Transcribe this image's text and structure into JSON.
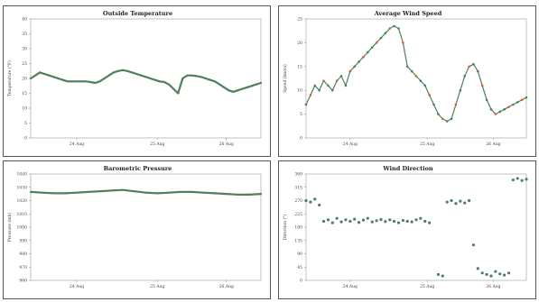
{
  "colors": {
    "series": "#4f7f5f",
    "accent": "#d9602f",
    "frame": "#555555"
  },
  "chart_data": [
    {
      "type": "line",
      "title": "Outside Temperature",
      "xlabel": "",
      "ylabel": "Temperature (°F)",
      "ylim": [
        0,
        40
      ],
      "yticks": [
        "40",
        "35",
        "30",
        "25",
        "20",
        "15",
        "10",
        "5",
        "0"
      ],
      "xticks": [
        "24 Aug",
        "25 Aug",
        "26 Aug"
      ],
      "x": [
        0,
        0.02,
        0.04,
        0.06,
        0.08,
        0.1,
        0.12,
        0.14,
        0.16,
        0.18,
        0.2,
        0.22,
        0.24,
        0.26,
        0.28,
        0.3,
        0.32,
        0.34,
        0.36,
        0.38,
        0.4,
        0.42,
        0.44,
        0.46,
        0.48,
        0.5,
        0.52,
        0.54,
        0.56,
        0.58,
        0.6,
        0.62,
        0.64,
        0.66,
        0.68,
        0.7,
        0.72,
        0.74,
        0.76,
        0.78,
        0.8,
        0.82,
        0.84,
        0.86,
        0.88,
        0.9,
        0.92,
        0.94,
        0.96,
        0.98,
        1.0
      ],
      "series": [
        {
          "values": [
            20,
            21,
            22,
            21.5,
            21,
            20.5,
            20,
            19.5,
            19,
            19,
            19,
            19,
            19,
            18.8,
            18.5,
            19,
            20,
            21,
            22,
            22.5,
            22.8,
            22.5,
            22,
            21.5,
            21,
            20.5,
            20,
            19.5,
            19,
            18.8,
            18,
            16.5,
            15,
            20,
            21,
            21,
            20.8,
            20.5,
            20,
            19.5,
            19,
            18,
            17,
            16,
            15.5,
            16,
            16.5,
            17,
            17.5,
            18,
            18.5
          ]
        }
      ]
    },
    {
      "type": "line",
      "title": "Average Wind Speed",
      "xlabel": "",
      "ylabel": "Speed (knots)",
      "ylim": [
        0,
        25
      ],
      "yticks": [
        "25",
        "20",
        "15",
        "10",
        "5",
        "0"
      ],
      "xticks": [
        "24 Aug",
        "25 Aug",
        "26 Aug"
      ],
      "x": [
        0,
        0.02,
        0.04,
        0.06,
        0.08,
        0.1,
        0.12,
        0.14,
        0.16,
        0.18,
        0.2,
        0.22,
        0.24,
        0.26,
        0.28,
        0.3,
        0.32,
        0.34,
        0.36,
        0.38,
        0.4,
        0.42,
        0.44,
        0.46,
        0.48,
        0.5,
        0.52,
        0.54,
        0.56,
        0.58,
        0.6,
        0.62,
        0.64,
        0.66,
        0.68,
        0.7,
        0.72,
        0.74,
        0.76,
        0.78,
        0.8,
        0.82,
        0.84,
        0.86,
        0.88,
        0.9,
        0.92,
        0.94,
        0.96,
        0.98,
        1.0
      ],
      "series": [
        {
          "values": [
            7,
            9,
            11,
            10,
            12,
            11,
            10,
            12,
            13,
            11,
            14,
            15,
            16,
            17,
            18,
            19,
            20,
            21,
            22,
            23,
            23.5,
            23,
            20,
            15,
            14,
            13,
            12,
            11,
            9,
            7,
            5,
            4,
            3.5,
            4,
            7,
            10,
            13,
            15,
            15.5,
            14,
            11,
            8,
            6,
            5,
            5.5,
            6,
            6.5,
            7,
            7.5,
            8,
            8.5
          ]
        }
      ]
    },
    {
      "type": "line",
      "title": "Barometric Pressure",
      "xlabel": "",
      "ylabel": "Pressure (mb)",
      "ylim": [
        960,
        1040
      ],
      "yticks": [
        "1040",
        "1030",
        "1020",
        "1010",
        "1000",
        "990",
        "980",
        "970",
        "960"
      ],
      "xticks": [
        "24 Aug",
        "25 Aug",
        "26 Aug"
      ],
      "x": [
        0,
        0.05,
        0.1,
        0.15,
        0.2,
        0.25,
        0.3,
        0.35,
        0.4,
        0.45,
        0.5,
        0.55,
        0.6,
        0.65,
        0.7,
        0.75,
        0.8,
        0.85,
        0.9,
        0.95,
        1.0
      ],
      "series": [
        {
          "values": [
            1026.5,
            1026,
            1025.5,
            1025.5,
            1026,
            1026.5,
            1027,
            1027.5,
            1028,
            1027,
            1026,
            1025.5,
            1026,
            1026.5,
            1026.5,
            1026,
            1025.5,
            1025,
            1024.5,
            1024.5,
            1025
          ]
        }
      ]
    },
    {
      "type": "scatter",
      "title": "Wind Direction",
      "xlabel": "",
      "ylabel": "Direction (°)",
      "ylim": [
        0,
        360
      ],
      "yticks": [
        "360",
        "315",
        "270",
        "225",
        "180",
        "135",
        "90",
        "45",
        "0"
      ],
      "xticks": [
        "24 Aug",
        "25 Aug",
        "26 Aug"
      ],
      "x": [
        0.0,
        0.02,
        0.04,
        0.06,
        0.08,
        0.1,
        0.12,
        0.14,
        0.16,
        0.18,
        0.2,
        0.22,
        0.24,
        0.26,
        0.28,
        0.3,
        0.32,
        0.34,
        0.36,
        0.38,
        0.4,
        0.42,
        0.44,
        0.46,
        0.48,
        0.5,
        0.52,
        0.54,
        0.56,
        0.6,
        0.62,
        0.64,
        0.66,
        0.68,
        0.7,
        0.72,
        0.74,
        0.76,
        0.78,
        0.8,
        0.82,
        0.84,
        0.86,
        0.88,
        0.9,
        0.92,
        0.94,
        0.96,
        0.98,
        1.0
      ],
      "series": [
        {
          "values": [
            270,
            265,
            275,
            255,
            200,
            205,
            195,
            210,
            198,
            205,
            200,
            207,
            196,
            204,
            210,
            198,
            202,
            206,
            199,
            205,
            200,
            195,
            203,
            200,
            198,
            205,
            210,
            200,
            195,
            20,
            15,
            265,
            270,
            260,
            268,
            262,
            270,
            120,
            40,
            25,
            20,
            15,
            30,
            22,
            18,
            25,
            340,
            345,
            338,
            342
          ]
        }
      ]
    }
  ]
}
